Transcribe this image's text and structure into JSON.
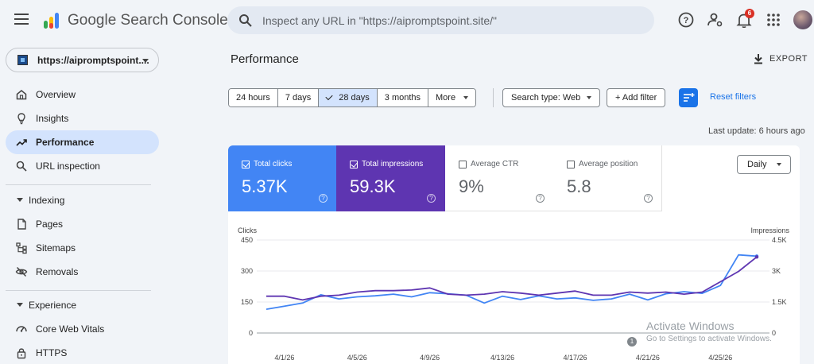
{
  "app": {
    "title": "Google Search Console"
  },
  "search": {
    "placeholder": "Inspect any URL in \"https://aipromptspoint.site/\""
  },
  "header_icons": {
    "help": "help-icon",
    "admin": "manage-accounts-icon",
    "notifications": "bell-icon",
    "notifications_count": "6",
    "apps": "apps-grid-icon"
  },
  "property": {
    "label": "https://aipromptspoint...."
  },
  "sidebar": {
    "items": [
      {
        "label": "Overview",
        "icon": "home-icon"
      },
      {
        "label": "Insights",
        "icon": "lightbulb-icon"
      },
      {
        "label": "Performance",
        "icon": "trending-up-icon",
        "active": true
      },
      {
        "label": "URL inspection",
        "icon": "search-icon"
      }
    ],
    "indexing": {
      "label": "Indexing",
      "items": [
        {
          "label": "Pages",
          "icon": "pages-icon"
        },
        {
          "label": "Sitemaps",
          "icon": "sitemap-icon"
        },
        {
          "label": "Removals",
          "icon": "eye-off-icon"
        }
      ]
    },
    "experience": {
      "label": "Experience",
      "items": [
        {
          "label": "Core Web Vitals",
          "icon": "gauge-icon"
        },
        {
          "label": "HTTPS",
          "icon": "lock-icon"
        }
      ]
    }
  },
  "main": {
    "title": "Performance",
    "export_label": "EXPORT",
    "ranges": [
      "24 hours",
      "7 days",
      "28 days",
      "3 months",
      "More"
    ],
    "selected_range": "28 days",
    "search_type": "Search type: Web",
    "add_filter": "+ Add filter",
    "reset_filters": "Reset filters",
    "last_update": "Last update: 6 hours ago"
  },
  "metrics": {
    "clicks": {
      "label": "Total clicks",
      "value": "5.37K",
      "checked": true,
      "color": "#4285f4"
    },
    "impressions": {
      "label": "Total impressions",
      "value": "59.3K",
      "checked": true,
      "color": "#5e35b1"
    },
    "ctr": {
      "label": "Average CTR",
      "value": "9%",
      "checked": false
    },
    "position": {
      "label": "Average position",
      "value": "5.8",
      "checked": false
    },
    "help_glyph": "?"
  },
  "granularity": "Daily",
  "chart_data": {
    "type": "line",
    "x": [
      "3/31/26",
      "4/1/26",
      "4/2/26",
      "4/3/26",
      "4/4/26",
      "4/5/26",
      "4/6/26",
      "4/7/26",
      "4/8/26",
      "4/9/26",
      "4/10/26",
      "4/11/26",
      "4/12/26",
      "4/13/26",
      "4/14/26",
      "4/15/26",
      "4/16/26",
      "4/17/26",
      "4/18/26",
      "4/19/26",
      "4/20/26",
      "4/21/26",
      "4/22/26",
      "4/23/26",
      "4/24/26",
      "4/25/26",
      "4/26/26",
      "4/27/26"
    ],
    "x_tick_labels": [
      "4/1/26",
      "4/5/26",
      "4/9/26",
      "4/13/26",
      "4/17/26",
      "4/21/26",
      "4/25/26"
    ],
    "y_left": {
      "label": "Clicks",
      "ticks": [
        "450",
        "300",
        "150",
        "0"
      ],
      "ylim": [
        0,
        450
      ]
    },
    "y_right": {
      "label": "Impressions",
      "ticks": [
        "4.5K",
        "3K",
        "1.5K",
        "0"
      ],
      "ylim": [
        0,
        4500
      ]
    },
    "series": [
      {
        "name": "Clicks",
        "axis": "left",
        "color": "#4285f4",
        "values": [
          115,
          130,
          145,
          185,
          165,
          175,
          180,
          188,
          175,
          195,
          190,
          183,
          145,
          178,
          162,
          180,
          165,
          170,
          158,
          165,
          188,
          160,
          190,
          200,
          192,
          230,
          378,
          372
        ]
      },
      {
        "name": "Impressions",
        "axis": "right",
        "color": "#5e35b1",
        "values": [
          1780,
          1780,
          1600,
          1780,
          1830,
          1980,
          2050,
          2050,
          2080,
          2180,
          1880,
          1830,
          1880,
          2000,
          1930,
          1830,
          1930,
          2030,
          1830,
          1830,
          1980,
          1930,
          1980,
          1880,
          1980,
          2480,
          2980,
          3680
        ]
      }
    ],
    "grid": true,
    "legend": "none"
  },
  "watermark": {
    "line1": "Activate Windows",
    "line2": "Go to Settings to activate Windows.",
    "badge": "1"
  }
}
